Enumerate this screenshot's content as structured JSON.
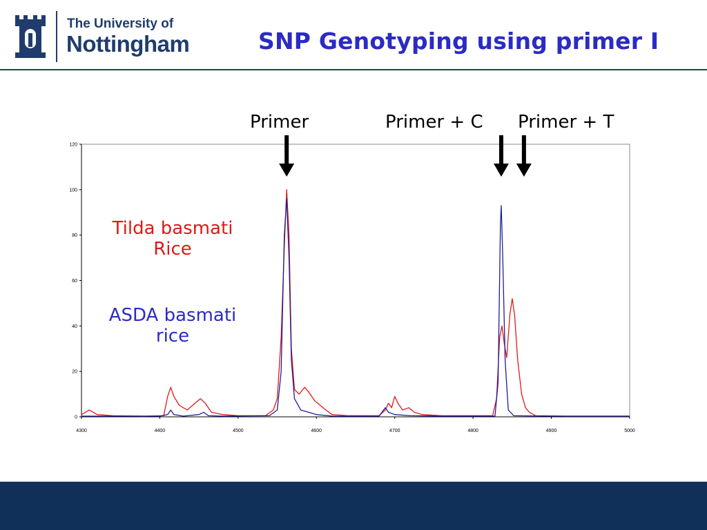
{
  "header": {
    "logo_line1": "The University of",
    "logo_line2": "Nottingham",
    "title": "SNP Genotyping using primer I"
  },
  "annotations": {
    "primer": "Primer",
    "primer_c": "Primer + C",
    "primer_t": "Primer + T",
    "tilda_line1": "Tilda basmati",
    "tilda_line2": "Rice",
    "asda_line1": "ASDA basmati",
    "asda_line2": "rice"
  },
  "colors": {
    "brand": "#1f3c6c",
    "title": "#2b2bc4",
    "tilda_series": "#e01818",
    "asda_series": "#1c1c9c",
    "footer": "#113059"
  },
  "chart_data": {
    "type": "line",
    "title": "",
    "xlabel": "",
    "ylabel": "",
    "xlim": [
      4300,
      5000
    ],
    "ylim": [
      0,
      120
    ],
    "x_ticks": [
      "4300",
      "4400",
      "4500",
      "4600",
      "4700",
      "4800",
      "4900",
      "5000"
    ],
    "y_ticks": [
      "0",
      "20",
      "40",
      "60",
      "80",
      "100",
      "120"
    ],
    "grid": false,
    "series": [
      {
        "name": "Tilda basmati Rice",
        "color": "#e01818",
        "points": [
          [
            4300,
            1
          ],
          [
            4310,
            3
          ],
          [
            4320,
            1
          ],
          [
            4340,
            0.5
          ],
          [
            4380,
            0.3
          ],
          [
            4405,
            0.5
          ],
          [
            4410,
            9
          ],
          [
            4414,
            13
          ],
          [
            4418,
            9
          ],
          [
            4425,
            5
          ],
          [
            4435,
            3
          ],
          [
            4445,
            6
          ],
          [
            4452,
            8
          ],
          [
            4458,
            6
          ],
          [
            4466,
            2
          ],
          [
            4480,
            1
          ],
          [
            4500,
            0.5
          ],
          [
            4535,
            0.5
          ],
          [
            4545,
            3
          ],
          [
            4550,
            8
          ],
          [
            4555,
            35
          ],
          [
            4559,
            75
          ],
          [
            4562,
            100
          ],
          [
            4565,
            80
          ],
          [
            4568,
            30
          ],
          [
            4572,
            12
          ],
          [
            4578,
            10
          ],
          [
            4585,
            13
          ],
          [
            4590,
            11
          ],
          [
            4598,
            7
          ],
          [
            4605,
            5
          ],
          [
            4612,
            3
          ],
          [
            4620,
            1
          ],
          [
            4640,
            0.5
          ],
          [
            4680,
            0.5
          ],
          [
            4688,
            3
          ],
          [
            4692,
            6
          ],
          [
            4696,
            4
          ],
          [
            4700,
            9
          ],
          [
            4704,
            6
          ],
          [
            4710,
            3
          ],
          [
            4718,
            4
          ],
          [
            4725,
            2
          ],
          [
            4735,
            1
          ],
          [
            4760,
            0.5
          ],
          [
            4825,
            0.5
          ],
          [
            4830,
            8
          ],
          [
            4834,
            35
          ],
          [
            4837,
            40
          ],
          [
            4840,
            32
          ],
          [
            4843,
            26
          ],
          [
            4847,
            45
          ],
          [
            4850,
            52
          ],
          [
            4853,
            45
          ],
          [
            4857,
            25
          ],
          [
            4862,
            10
          ],
          [
            4867,
            4
          ],
          [
            4872,
            2
          ],
          [
            4880,
            0.5
          ],
          [
            4920,
            0.3
          ],
          [
            4960,
            0.3
          ],
          [
            5000,
            0.3
          ]
        ]
      },
      {
        "name": "ASDA basmati rice",
        "color": "#1c1c9c",
        "points": [
          [
            4300,
            0.3
          ],
          [
            4400,
            0.3
          ],
          [
            4410,
            1
          ],
          [
            4414,
            3
          ],
          [
            4418,
            1
          ],
          [
            4430,
            0.3
          ],
          [
            4450,
            1
          ],
          [
            4456,
            2
          ],
          [
            4462,
            0.5
          ],
          [
            4480,
            0.3
          ],
          [
            4540,
            0.5
          ],
          [
            4550,
            3
          ],
          [
            4555,
            20
          ],
          [
            4559,
            80
          ],
          [
            4562,
            96
          ],
          [
            4565,
            70
          ],
          [
            4568,
            25
          ],
          [
            4572,
            8
          ],
          [
            4580,
            3
          ],
          [
            4590,
            2
          ],
          [
            4600,
            1
          ],
          [
            4620,
            0.3
          ],
          [
            4680,
            0.3
          ],
          [
            4688,
            4
          ],
          [
            4692,
            2
          ],
          [
            4700,
            1
          ],
          [
            4720,
            0.5
          ],
          [
            4760,
            0.3
          ],
          [
            4828,
            0.3
          ],
          [
            4832,
            15
          ],
          [
            4835,
            85
          ],
          [
            4836,
            93
          ],
          [
            4838,
            70
          ],
          [
            4841,
            25
          ],
          [
            4845,
            3
          ],
          [
            4852,
            0.5
          ],
          [
            4900,
            0.3
          ],
          [
            4960,
            0.3
          ],
          [
            5000,
            0.3
          ]
        ]
      }
    ],
    "markers": [
      {
        "label": "Primer",
        "x": 4562
      },
      {
        "label": "Primer + C",
        "x": 4836
      },
      {
        "label": "Primer + T",
        "x": 4865
      }
    ]
  }
}
